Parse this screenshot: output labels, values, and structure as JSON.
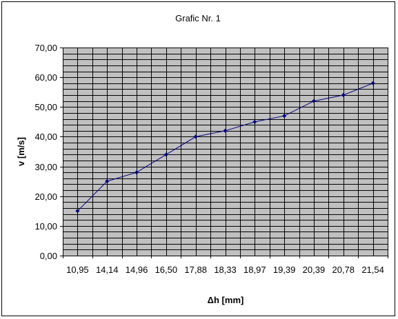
{
  "chart_data": {
    "type": "line",
    "title": "Grafic Nr. 1",
    "xlabel": "Δh [mm]",
    "ylabel": "v [m/s]",
    "categories": [
      "10,95",
      "14,14",
      "14,96",
      "16,50",
      "17,88",
      "18,33",
      "18,97",
      "19,39",
      "20,39",
      "20,78",
      "21,54"
    ],
    "y_tick_labels": [
      "0,00",
      "10,00",
      "20,00",
      "30,00",
      "40,00",
      "50,00",
      "60,00",
      "70,00"
    ],
    "ylim": [
      0,
      70
    ],
    "y_major_step": 10,
    "y_minor_step": 2,
    "series": [
      {
        "values": [
          15,
          25,
          28,
          34,
          40,
          42,
          45,
          47,
          52,
          54,
          58
        ]
      }
    ],
    "grid": true,
    "legend": "none",
    "colors": {
      "plot_background": "#c0c0c0",
      "gridline": "#000000",
      "series_line": "#000080",
      "marker": "#000080"
    }
  }
}
